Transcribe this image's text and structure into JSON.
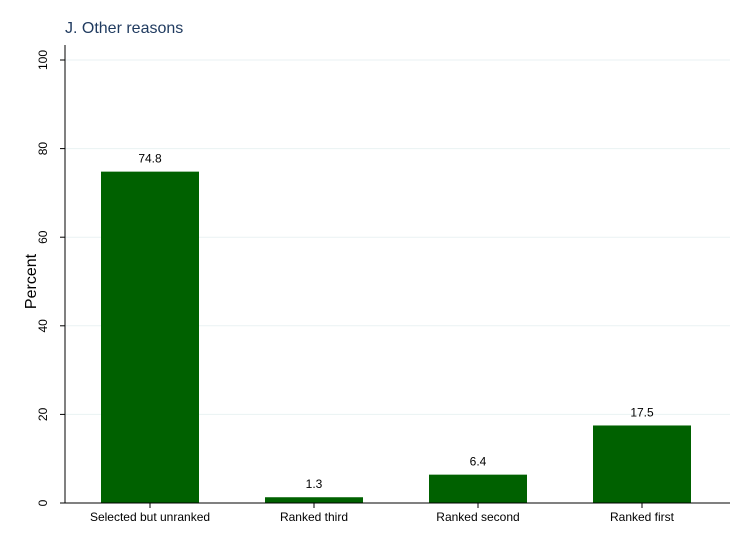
{
  "chart_data": {
    "type": "bar",
    "title": "J. Other reasons",
    "ylabel": "Percent",
    "xlabel": "",
    "categories": [
      "Selected but unranked",
      "Ranked third",
      "Ranked second",
      "Ranked first"
    ],
    "values": [
      74.8,
      1.3,
      6.4,
      17.5
    ],
    "value_labels": [
      "74.8",
      "1.3",
      "6.4",
      "17.5"
    ],
    "ylim": [
      0,
      100
    ],
    "yticks": [
      0,
      20,
      40,
      60,
      80,
      100
    ],
    "ytick_labels": [
      "0",
      "20",
      "40",
      "60",
      "80",
      "100"
    ],
    "grid": true,
    "colors": {
      "bar": "#006100",
      "grid": "#eaf2f3",
      "axis": "#000000",
      "title": "#1f3a5f"
    }
  }
}
